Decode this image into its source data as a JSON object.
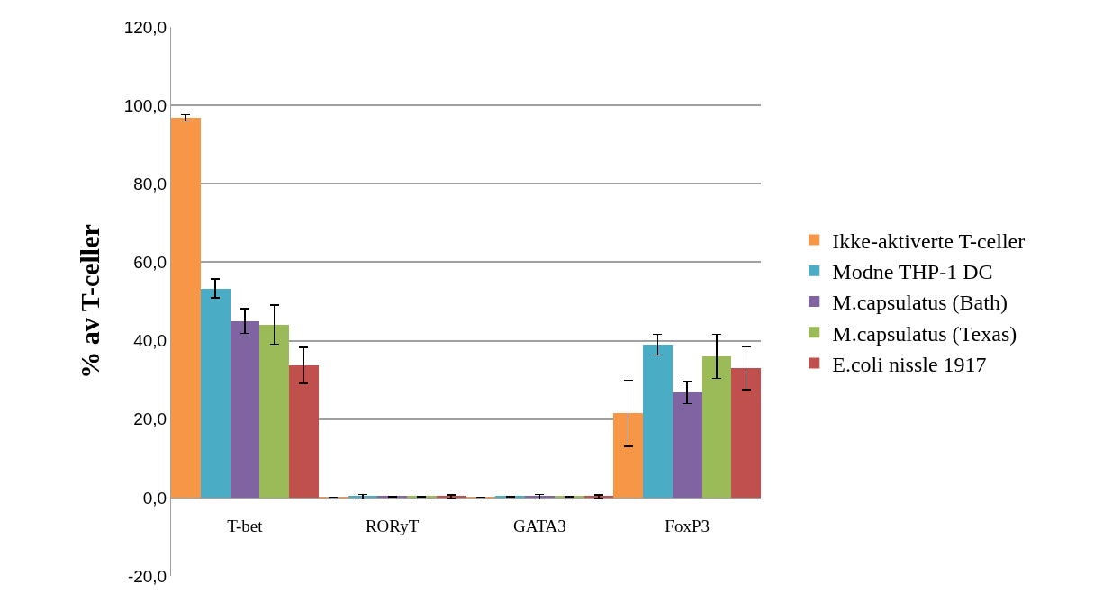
{
  "chart_data": {
    "type": "bar",
    "ylabel": "% av T-celler",
    "categories": [
      "T-bet",
      "RORyT",
      "GATA3",
      "FoxP3"
    ],
    "series": [
      {
        "name": "Ikke-aktiverte T-celler",
        "color": "#f79646",
        "values": [
          96.8,
          0.1,
          0.1,
          21.5
        ],
        "errors": [
          0.8,
          null,
          null,
          8.4
        ]
      },
      {
        "name": "Modne THP-1 DC",
        "color": "#4bacc6",
        "values": [
          53.3,
          0.2,
          0.2,
          39.0
        ],
        "errors": [
          2.4,
          0.6,
          null,
          2.6
        ]
      },
      {
        "name": "M.capsulatus (Bath)",
        "color": "#8064a2",
        "values": [
          45.0,
          0.2,
          0.2,
          26.8
        ],
        "errors": [
          3.2,
          null,
          0.6,
          2.8
        ]
      },
      {
        "name": "M.capsulatus (Texas)",
        "color": "#9bbb59",
        "values": [
          44.1,
          0.2,
          0.2,
          36.0
        ],
        "errors": [
          5.0,
          null,
          null,
          5.6
        ]
      },
      {
        "name": "E.coli nissle 1917",
        "color": "#c0504d",
        "values": [
          33.7,
          0.2,
          0.2,
          33.0
        ],
        "errors": [
          4.6,
          0.4,
          0.5,
          5.5
        ]
      }
    ],
    "ylim": [
      -20,
      120
    ],
    "yticks": [
      {
        "value": -20,
        "label": "-20,0"
      },
      {
        "value": 0,
        "label": "0,0"
      },
      {
        "value": 20,
        "label": "20,0"
      },
      {
        "value": 40,
        "label": "40,0"
      },
      {
        "value": 60,
        "label": "60,0"
      },
      {
        "value": 80,
        "label": "80,0"
      },
      {
        "value": 100,
        "label": "100,0"
      },
      {
        "value": 120,
        "label": "120,0"
      }
    ],
    "grid": "y",
    "legend": "right"
  }
}
